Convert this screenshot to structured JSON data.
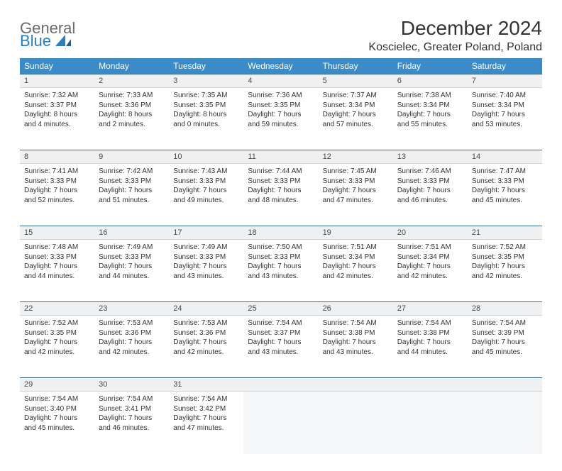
{
  "brand": {
    "top": "General",
    "bottom": "Blue"
  },
  "title": "December 2024",
  "location": "Koscielec, Greater Poland, Poland",
  "colors": {
    "header_bg": "#3b8bc8",
    "header_fg": "#ffffff",
    "daynum_bg": "#eef0f1",
    "daynum_border_top": "#3b6a8f",
    "text": "#333333",
    "logo_gray": "#6a6a6a",
    "logo_blue": "#2a7fbf"
  },
  "day_headers": [
    "Sunday",
    "Monday",
    "Tuesday",
    "Wednesday",
    "Thursday",
    "Friday",
    "Saturday"
  ],
  "weeks": [
    [
      {
        "n": "1",
        "sr": "7:32 AM",
        "ss": "3:37 PM",
        "dl": "8 hours and 4 minutes."
      },
      {
        "n": "2",
        "sr": "7:33 AM",
        "ss": "3:36 PM",
        "dl": "8 hours and 2 minutes."
      },
      {
        "n": "3",
        "sr": "7:35 AM",
        "ss": "3:35 PM",
        "dl": "8 hours and 0 minutes."
      },
      {
        "n": "4",
        "sr": "7:36 AM",
        "ss": "3:35 PM",
        "dl": "7 hours and 59 minutes."
      },
      {
        "n": "5",
        "sr": "7:37 AM",
        "ss": "3:34 PM",
        "dl": "7 hours and 57 minutes."
      },
      {
        "n": "6",
        "sr": "7:38 AM",
        "ss": "3:34 PM",
        "dl": "7 hours and 55 minutes."
      },
      {
        "n": "7",
        "sr": "7:40 AM",
        "ss": "3:34 PM",
        "dl": "7 hours and 53 minutes."
      }
    ],
    [
      {
        "n": "8",
        "sr": "7:41 AM",
        "ss": "3:33 PM",
        "dl": "7 hours and 52 minutes."
      },
      {
        "n": "9",
        "sr": "7:42 AM",
        "ss": "3:33 PM",
        "dl": "7 hours and 51 minutes."
      },
      {
        "n": "10",
        "sr": "7:43 AM",
        "ss": "3:33 PM",
        "dl": "7 hours and 49 minutes."
      },
      {
        "n": "11",
        "sr": "7:44 AM",
        "ss": "3:33 PM",
        "dl": "7 hours and 48 minutes."
      },
      {
        "n": "12",
        "sr": "7:45 AM",
        "ss": "3:33 PM",
        "dl": "7 hours and 47 minutes."
      },
      {
        "n": "13",
        "sr": "7:46 AM",
        "ss": "3:33 PM",
        "dl": "7 hours and 46 minutes."
      },
      {
        "n": "14",
        "sr": "7:47 AM",
        "ss": "3:33 PM",
        "dl": "7 hours and 45 minutes."
      }
    ],
    [
      {
        "n": "15",
        "sr": "7:48 AM",
        "ss": "3:33 PM",
        "dl": "7 hours and 44 minutes."
      },
      {
        "n": "16",
        "sr": "7:49 AM",
        "ss": "3:33 PM",
        "dl": "7 hours and 44 minutes."
      },
      {
        "n": "17",
        "sr": "7:49 AM",
        "ss": "3:33 PM",
        "dl": "7 hours and 43 minutes."
      },
      {
        "n": "18",
        "sr": "7:50 AM",
        "ss": "3:33 PM",
        "dl": "7 hours and 43 minutes."
      },
      {
        "n": "19",
        "sr": "7:51 AM",
        "ss": "3:34 PM",
        "dl": "7 hours and 42 minutes."
      },
      {
        "n": "20",
        "sr": "7:51 AM",
        "ss": "3:34 PM",
        "dl": "7 hours and 42 minutes."
      },
      {
        "n": "21",
        "sr": "7:52 AM",
        "ss": "3:35 PM",
        "dl": "7 hours and 42 minutes."
      }
    ],
    [
      {
        "n": "22",
        "sr": "7:52 AM",
        "ss": "3:35 PM",
        "dl": "7 hours and 42 minutes."
      },
      {
        "n": "23",
        "sr": "7:53 AM",
        "ss": "3:36 PM",
        "dl": "7 hours and 42 minutes."
      },
      {
        "n": "24",
        "sr": "7:53 AM",
        "ss": "3:36 PM",
        "dl": "7 hours and 42 minutes."
      },
      {
        "n": "25",
        "sr": "7:54 AM",
        "ss": "3:37 PM",
        "dl": "7 hours and 43 minutes."
      },
      {
        "n": "26",
        "sr": "7:54 AM",
        "ss": "3:38 PM",
        "dl": "7 hours and 43 minutes."
      },
      {
        "n": "27",
        "sr": "7:54 AM",
        "ss": "3:38 PM",
        "dl": "7 hours and 44 minutes."
      },
      {
        "n": "28",
        "sr": "7:54 AM",
        "ss": "3:39 PM",
        "dl": "7 hours and 45 minutes."
      }
    ],
    [
      {
        "n": "29",
        "sr": "7:54 AM",
        "ss": "3:40 PM",
        "dl": "7 hours and 45 minutes."
      },
      {
        "n": "30",
        "sr": "7:54 AM",
        "ss": "3:41 PM",
        "dl": "7 hours and 46 minutes."
      },
      {
        "n": "31",
        "sr": "7:54 AM",
        "ss": "3:42 PM",
        "dl": "7 hours and 47 minutes."
      },
      null,
      null,
      null,
      null
    ]
  ],
  "labels": {
    "sunrise": "Sunrise:",
    "sunset": "Sunset:",
    "daylight": "Daylight:"
  }
}
